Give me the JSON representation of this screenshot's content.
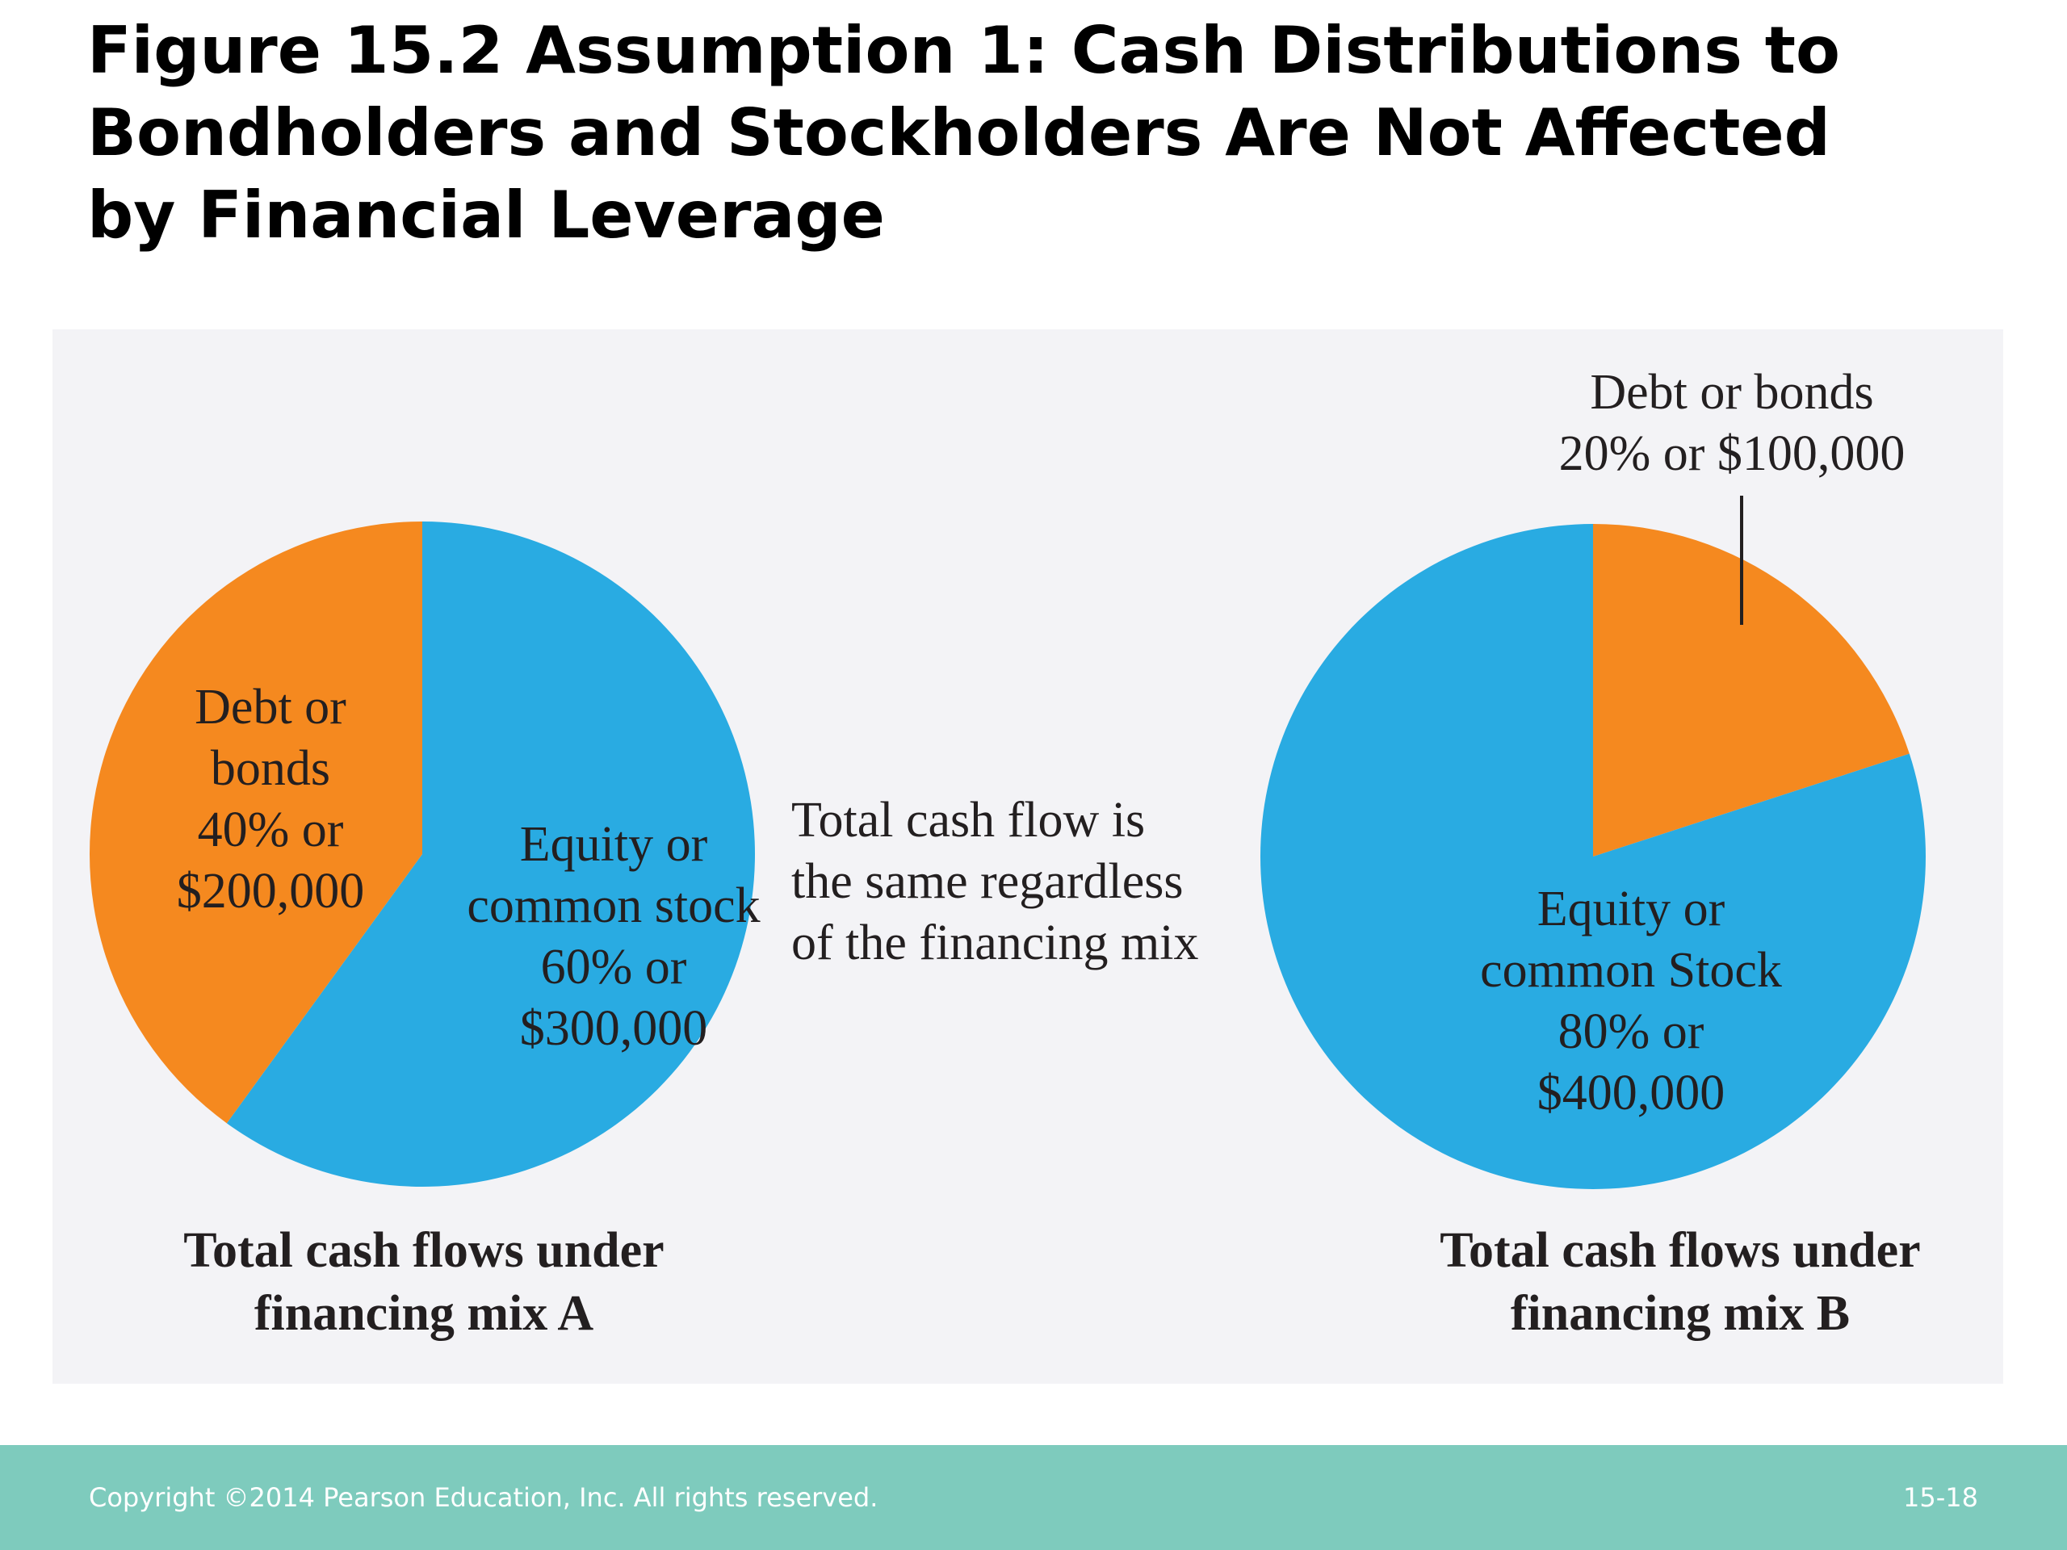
{
  "slide": {
    "title_lines": [
      "Figure 15.2 Assumption 1: Cash Distributions to",
      "Bondholders and Stockholders Are Not Affected",
      "by Financial Leverage"
    ]
  },
  "center_note_lines": [
    "Total cash flow is",
    "the same regardless",
    "of the financing mix"
  ],
  "footer": {
    "copyright": "Copyright ©2014 Pearson Education, Inc. All rights reserved.",
    "page": "15-18"
  },
  "colors": {
    "debt": "#f5891f",
    "equity": "#29abe2",
    "panel_background": "#f3f3f6",
    "footer_bar": "#7ecbbd"
  },
  "chart_data": [
    {
      "type": "pie",
      "caption_lines": [
        "Total cash flows under",
        "financing mix A"
      ],
      "slices": [
        {
          "name": "Debt or bonds",
          "percent": 40,
          "amount": 200000,
          "label_lines": [
            "Debt or",
            "bonds",
            "40% or",
            "$200,000"
          ],
          "color": "#f5891f"
        },
        {
          "name": "Equity or common stock",
          "percent": 60,
          "amount": 300000,
          "label_lines": [
            "Equity or",
            "common stock",
            "60% or",
            "$300,000"
          ],
          "color": "#29abe2"
        }
      ]
    },
    {
      "type": "pie",
      "caption_lines": [
        "Total cash flows under",
        "financing mix B"
      ],
      "slices": [
        {
          "name": "Debt or bonds",
          "percent": 20,
          "amount": 100000,
          "label_lines": [
            "Debt or bonds",
            "20% or $100,000"
          ],
          "color": "#f5891f"
        },
        {
          "name": "Equity or common Stock",
          "percent": 80,
          "amount": 400000,
          "label_lines": [
            "Equity or",
            "common Stock",
            "80% or",
            "$400,000"
          ],
          "color": "#29abe2"
        }
      ]
    }
  ]
}
